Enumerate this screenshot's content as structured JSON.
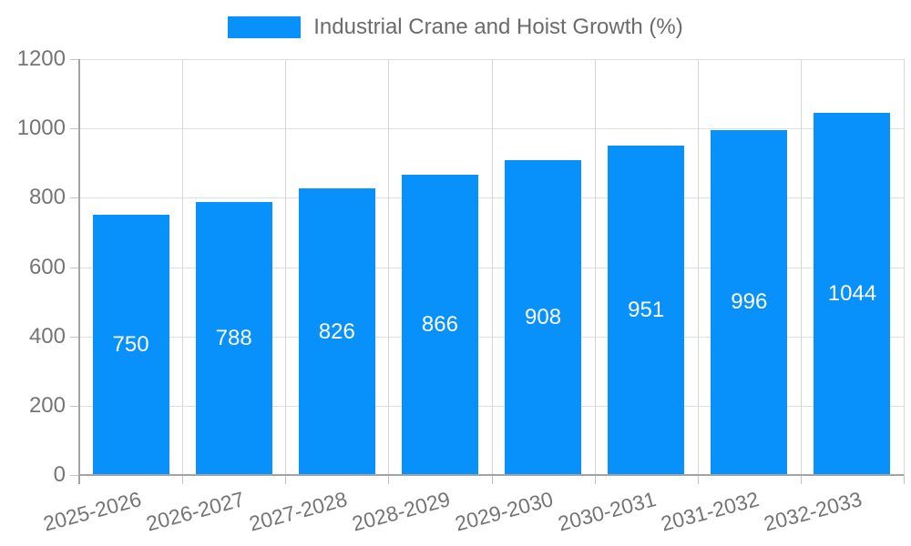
{
  "chart_data": {
    "type": "bar",
    "title": "Industrial Crane and Hoist Growth (%)",
    "legend": {
      "label": "Industrial Crane and Hoist Growth (%)",
      "position": "top-center"
    },
    "categories": [
      "2025-2026",
      "2026-2027",
      "2027-2028",
      "2028-2029",
      "2029-2030",
      "2030-2031",
      "2031-2032",
      "2032-2033"
    ],
    "values": [
      750,
      788,
      826,
      866,
      908,
      951,
      996,
      1044
    ],
    "value_label_style": "white text centered inside bar",
    "xlabel": "",
    "ylabel": "",
    "ylim": [
      0,
      1200
    ],
    "yticks": [
      0,
      200,
      400,
      600,
      800,
      1000,
      1200
    ],
    "grid": true,
    "x_label_rotation_deg": -15,
    "colors": {
      "bar": "#0991FB",
      "grid_line": "#dedede",
      "axis_line": "#a3a3a3",
      "tick_label": "#757575",
      "legend_text": "#6b6b6b",
      "value_label": "#ffffff",
      "background": "#ffffff"
    }
  }
}
